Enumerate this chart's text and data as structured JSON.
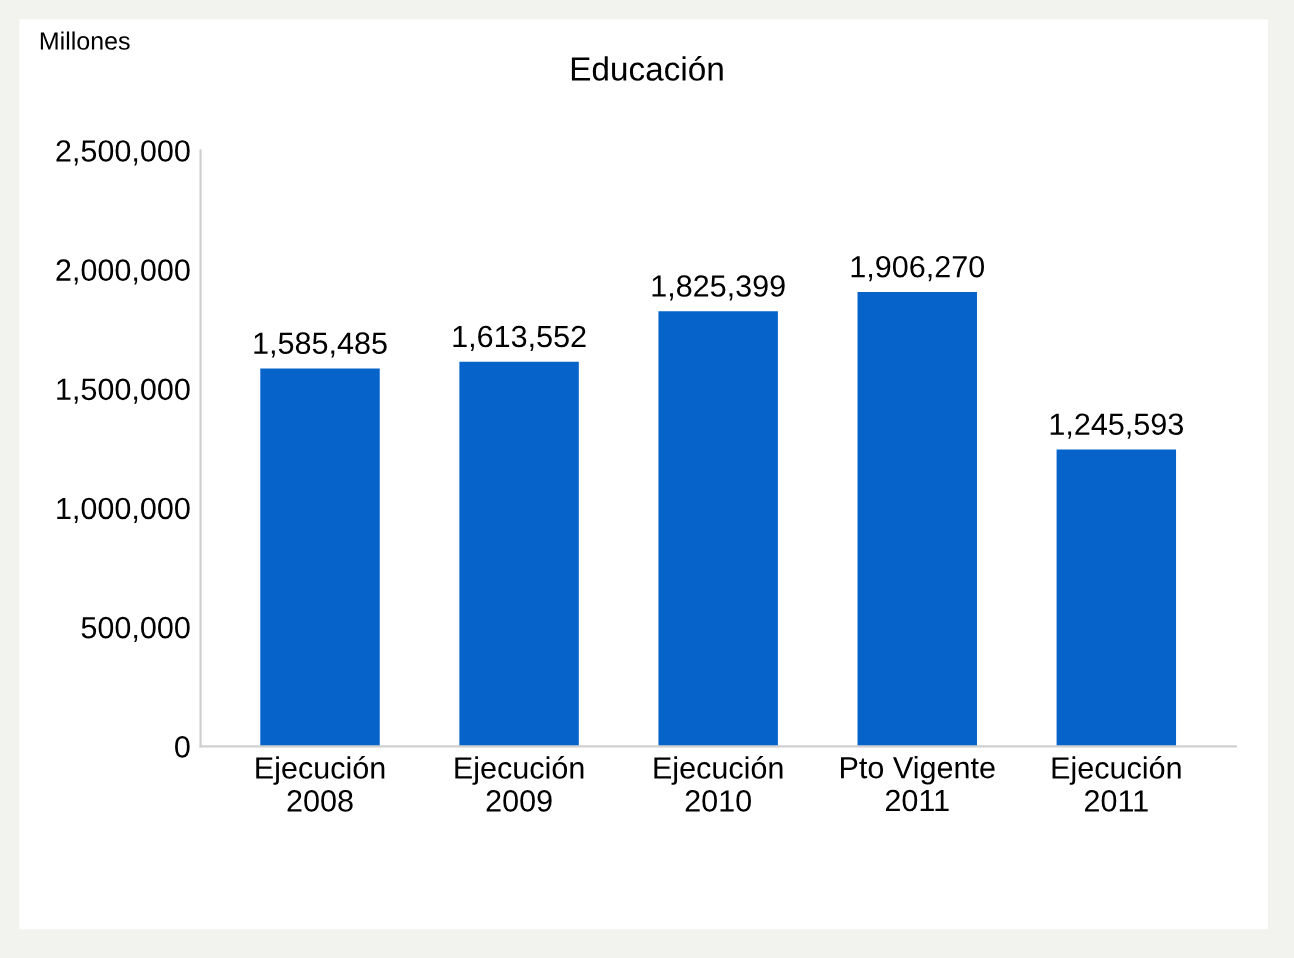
{
  "chart_data": {
    "type": "bar",
    "title": "Educación",
    "categories": [
      "Ejecución\n2008",
      "Ejecución\n2009",
      "Ejecución\n2010",
      "Pto Vigente\n2011",
      "Ejecución\n2011"
    ],
    "values": [
      1585485,
      1613552,
      1825399,
      1906270,
      1245593
    ],
    "value_labels": [
      "1,585,485",
      "1,613,552",
      "1,825,399",
      "1,906,270",
      "1,245,593"
    ],
    "color": "#0563c9",
    "ylim": [
      0,
      2500000
    ],
    "yticks": [
      0,
      {
        "value": 500000,
        "label": "500,000"
      },
      {
        "value": 1000000,
        "label": "1,000,000"
      },
      {
        "value": 1500000,
        "label": "1,500,000"
      },
      {
        "value": 2000000,
        "label": "2,000,000"
      },
      {
        "value": 2500000,
        "label": "2,500,000"
      }
    ],
    "annotations": [
      "Millones"
    ],
    "grid": false,
    "legend": false
  }
}
